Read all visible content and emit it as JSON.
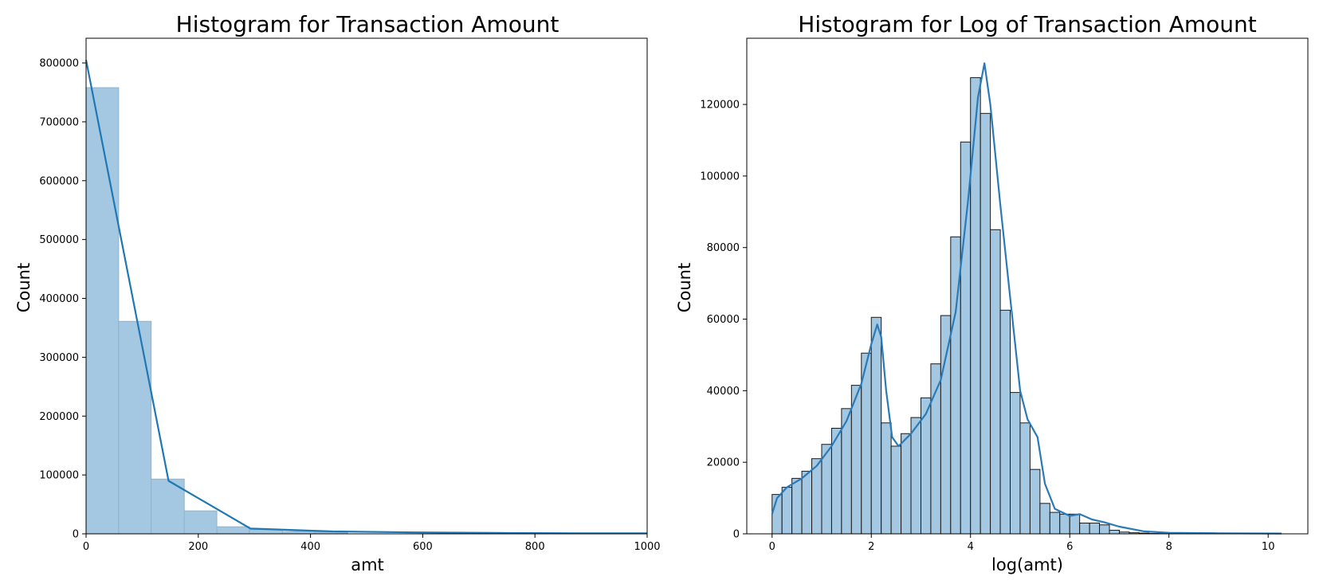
{
  "chart_data": [
    {
      "type": "bar",
      "title": "Histogram for Transaction Amount",
      "xlabel": "amt",
      "ylabel": "Count",
      "xlim": [
        0,
        1000
      ],
      "ylim": [
        0,
        842000
      ],
      "xticks": [
        0,
        200,
        400,
        600,
        800,
        1000
      ],
      "yticks": [
        0,
        100000,
        200000,
        300000,
        400000,
        500000,
        600000,
        700000,
        800000
      ],
      "bar_color": "#a4c8e1",
      "bar_edge": "#8fb3cc",
      "line_color": "#1f77b4",
      "bins": [
        {
          "x0": 0,
          "x1": 58,
          "value": 758000
        },
        {
          "x0": 58,
          "x1": 116,
          "value": 361000
        },
        {
          "x0": 116,
          "x1": 175,
          "value": 93000
        },
        {
          "x0": 175,
          "x1": 233,
          "value": 39000
        },
        {
          "x0": 233,
          "x1": 291,
          "value": 12000
        },
        {
          "x0": 291,
          "x1": 350,
          "value": 7000
        },
        {
          "x0": 350,
          "x1": 408,
          "value": 4000
        },
        {
          "x0": 408,
          "x1": 466,
          "value": 3000
        }
      ],
      "kde": [
        {
          "x": 0,
          "y": 805000
        },
        {
          "x": 147,
          "y": 90000
        },
        {
          "x": 293,
          "y": 9000
        },
        {
          "x": 440,
          "y": 4000
        },
        {
          "x": 587,
          "y": 2500
        },
        {
          "x": 733,
          "y": 1500
        },
        {
          "x": 880,
          "y": 1000
        },
        {
          "x": 1000,
          "y": 800
        }
      ]
    },
    {
      "type": "bar",
      "title": "Histogram for Log of Transaction Amount",
      "xlabel": "log(amt)",
      "ylabel": "Count",
      "xlim": [
        -0.51,
        10.8
      ],
      "ylim": [
        0,
        138500
      ],
      "xticks": [
        0,
        2,
        4,
        6,
        8,
        10
      ],
      "yticks": [
        0,
        20000,
        40000,
        60000,
        80000,
        100000,
        120000
      ],
      "bin_start": 0,
      "bin_width": 0.2,
      "bar_color": "#a4c8e1",
      "bar_edge": "#1a1a1a",
      "line_color": "#2a7ab8",
      "values": [
        11000,
        13000,
        15500,
        17500,
        21000,
        25000,
        29500,
        35000,
        41500,
        50500,
        60500,
        31000,
        24500,
        28000,
        32500,
        38000,
        47500,
        61000,
        83000,
        109500,
        127500,
        117500,
        85000,
        62500,
        39500,
        31000,
        18000,
        8500,
        6000,
        5500,
        5500,
        3000,
        3000,
        2500,
        1000,
        500,
        300,
        200,
        100,
        80,
        60,
        50,
        40,
        30,
        30,
        20,
        20,
        10,
        10,
        10,
        10
      ],
      "kde": [
        {
          "x": 0.0,
          "y": 5500
        },
        {
          "x": 0.1,
          "y": 10000
        },
        {
          "x": 0.3,
          "y": 13000
        },
        {
          "x": 0.6,
          "y": 15500
        },
        {
          "x": 0.9,
          "y": 19000
        },
        {
          "x": 1.2,
          "y": 24500
        },
        {
          "x": 1.5,
          "y": 31500
        },
        {
          "x": 1.8,
          "y": 42000
        },
        {
          "x": 2.0,
          "y": 53000
        },
        {
          "x": 2.12,
          "y": 58500
        },
        {
          "x": 2.2,
          "y": 55000
        },
        {
          "x": 2.3,
          "y": 40000
        },
        {
          "x": 2.42,
          "y": 27000
        },
        {
          "x": 2.55,
          "y": 24500
        },
        {
          "x": 2.8,
          "y": 28000
        },
        {
          "x": 3.1,
          "y": 33500
        },
        {
          "x": 3.4,
          "y": 43000
        },
        {
          "x": 3.7,
          "y": 62000
        },
        {
          "x": 3.95,
          "y": 93000
        },
        {
          "x": 4.15,
          "y": 122000
        },
        {
          "x": 4.28,
          "y": 131500
        },
        {
          "x": 4.4,
          "y": 120000
        },
        {
          "x": 4.6,
          "y": 92000
        },
        {
          "x": 4.8,
          "y": 66000
        },
        {
          "x": 5.0,
          "y": 40000
        },
        {
          "x": 5.15,
          "y": 32000
        },
        {
          "x": 5.35,
          "y": 27000
        },
        {
          "x": 5.5,
          "y": 14000
        },
        {
          "x": 5.7,
          "y": 7000
        },
        {
          "x": 6.0,
          "y": 5000
        },
        {
          "x": 6.2,
          "y": 5500
        },
        {
          "x": 6.45,
          "y": 4000
        },
        {
          "x": 6.7,
          "y": 3200
        },
        {
          "x": 7.0,
          "y": 2000
        },
        {
          "x": 7.5,
          "y": 700
        },
        {
          "x": 8.0,
          "y": 300
        },
        {
          "x": 9.0,
          "y": 150
        },
        {
          "x": 10.27,
          "y": 80
        }
      ]
    }
  ]
}
